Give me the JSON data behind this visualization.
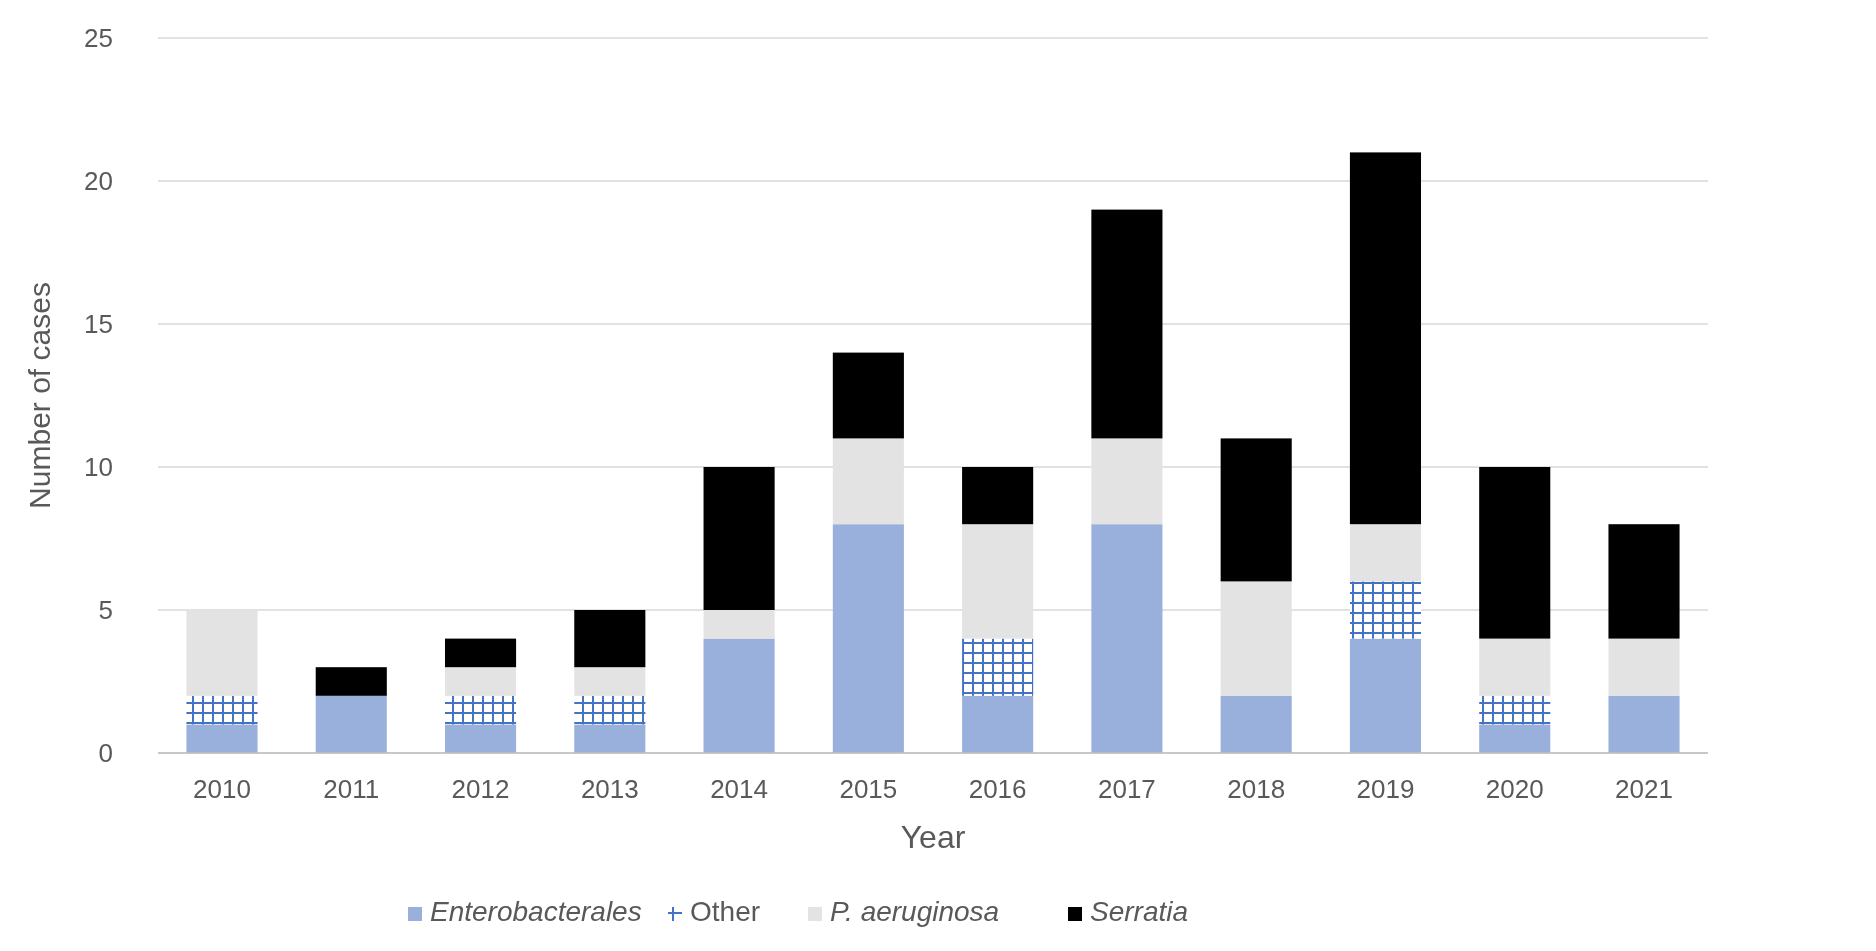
{
  "chart_data": {
    "type": "bar",
    "stacked": true,
    "xlabel": "Year",
    "ylabel": "Number of cases",
    "categories": [
      "2010",
      "2011",
      "2012",
      "2013",
      "2014",
      "2015",
      "2016",
      "2017",
      "2018",
      "2019",
      "2020",
      "2021"
    ],
    "series": [
      {
        "name": "Enterobacterales",
        "color": "#9ab0dc",
        "values": [
          1,
          2,
          1,
          1,
          4,
          8,
          2,
          8,
          2,
          4,
          1,
          2
        ]
      },
      {
        "name": "Other",
        "color": "#4472c4",
        "values": [
          1,
          0,
          1,
          1,
          0,
          0,
          2,
          0,
          0,
          2,
          1,
          0
        ]
      },
      {
        "name": "P. aeruginosa",
        "color": "#e3e3e3",
        "values": [
          3,
          0,
          1,
          1,
          1,
          3,
          4,
          3,
          4,
          2,
          2,
          2
        ]
      },
      {
        "name": "Serratia",
        "color": "#000000",
        "values": [
          0,
          1,
          1,
          2,
          5,
          3,
          2,
          8,
          5,
          13,
          6,
          4
        ]
      }
    ],
    "ylim": [
      0,
      25
    ],
    "yticks": [
      0,
      5,
      10,
      15,
      20,
      25
    ],
    "grid": "y",
    "legend": "bottom"
  }
}
